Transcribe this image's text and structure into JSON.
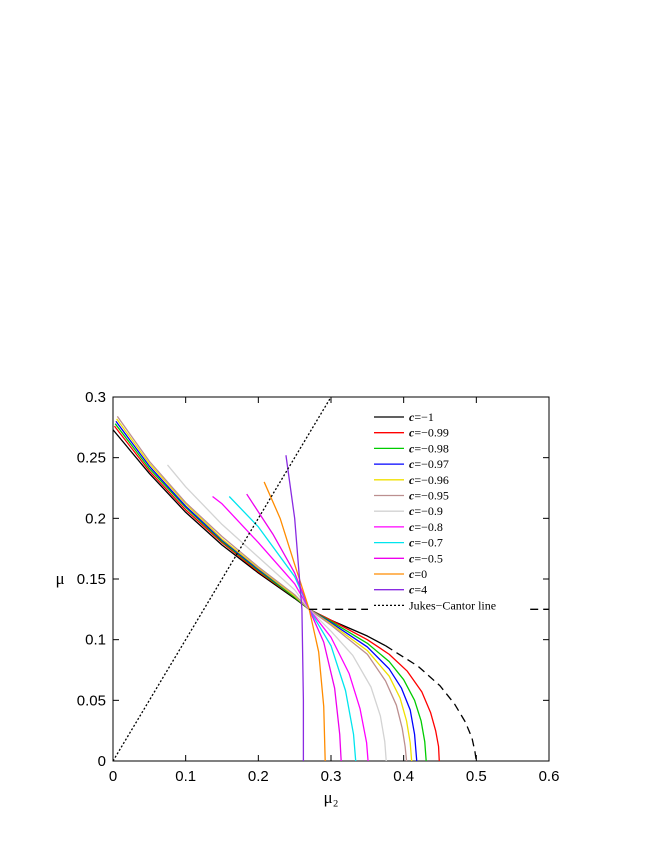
{
  "chart_data": {
    "type": "line",
    "title": "",
    "xlabel": "μ₂",
    "ylabel": "μ",
    "xlim": [
      0,
      0.6
    ],
    "ylim": [
      0,
      0.3
    ],
    "xticks": [
      0,
      0.1,
      0.2,
      0.3,
      0.4,
      0.5,
      0.6
    ],
    "xtick_labels": [
      "0",
      "0.1",
      "0.2",
      "0.3",
      "0.4",
      "0.5",
      "0.6"
    ],
    "yticks": [
      0,
      0.05,
      0.1,
      0.15,
      0.2,
      0.25,
      0.3
    ],
    "ytick_labels": [
      "0",
      "0.05",
      "0.1",
      "0.15",
      "0.2",
      "0.25",
      "0.3"
    ],
    "grid": false,
    "legend_position": "top-right",
    "series": [
      {
        "name": "c=−1",
        "legend_prefix": "c",
        "legend_suffix": "=−1",
        "color": "#000000",
        "dash": "solid",
        "x": [
          0,
          0.05,
          0.1,
          0.15,
          0.2,
          0.25,
          0.27,
          0.3,
          0.35,
          0.375
        ],
        "y": [
          0.273,
          0.237,
          0.205,
          0.178,
          0.155,
          0.134,
          0.125,
          0.116,
          0.103,
          0.095
        ]
      },
      {
        "name": "c=−0.99",
        "legend_prefix": "c",
        "legend_suffix": "=−0.99",
        "color": "#ff0000",
        "dash": "solid",
        "x": [
          0.002,
          0.05,
          0.1,
          0.15,
          0.2,
          0.25,
          0.27,
          0.3,
          0.35,
          0.38,
          0.405,
          0.425,
          0.437,
          0.444,
          0.448,
          0.449
        ],
        "y": [
          0.276,
          0.239,
          0.207,
          0.18,
          0.156,
          0.135,
          0.125,
          0.116,
          0.1,
          0.088,
          0.074,
          0.057,
          0.04,
          0.025,
          0.012,
          0
        ]
      },
      {
        "name": "c=−0.98",
        "legend_prefix": "c",
        "legend_suffix": "=−0.98",
        "color": "#00cc00",
        "dash": "solid",
        "x": [
          0.003,
          0.05,
          0.1,
          0.15,
          0.2,
          0.25,
          0.27,
          0.3,
          0.35,
          0.38,
          0.4,
          0.415,
          0.424,
          0.429,
          0.431
        ],
        "y": [
          0.278,
          0.241,
          0.209,
          0.181,
          0.157,
          0.135,
          0.125,
          0.115,
          0.097,
          0.082,
          0.067,
          0.05,
          0.033,
          0.016,
          0
        ]
      },
      {
        "name": "c=−0.97",
        "legend_prefix": "c",
        "legend_suffix": "=−0.97",
        "color": "#0000ff",
        "dash": "solid",
        "x": [
          0.004,
          0.05,
          0.1,
          0.15,
          0.2,
          0.25,
          0.27,
          0.3,
          0.35,
          0.38,
          0.397,
          0.409,
          0.415,
          0.418
        ],
        "y": [
          0.28,
          0.243,
          0.21,
          0.182,
          0.158,
          0.136,
          0.125,
          0.114,
          0.094,
          0.076,
          0.06,
          0.042,
          0.022,
          0
        ]
      },
      {
        "name": "c=−0.96",
        "legend_prefix": "c",
        "legend_suffix": "=−0.96",
        "color": "#f0e000",
        "dash": "solid",
        "x": [
          0.005,
          0.05,
          0.1,
          0.15,
          0.2,
          0.25,
          0.27,
          0.3,
          0.35,
          0.38,
          0.395,
          0.404,
          0.409,
          0.411
        ],
        "y": [
          0.282,
          0.245,
          0.212,
          0.183,
          0.159,
          0.136,
          0.125,
          0.113,
          0.091,
          0.07,
          0.052,
          0.033,
          0.015,
          0
        ]
      },
      {
        "name": "c=−0.95",
        "legend_prefix": "c",
        "legend_suffix": "=−0.95",
        "color": "#bc8f8f",
        "dash": "solid",
        "x": [
          0.006,
          0.05,
          0.1,
          0.15,
          0.2,
          0.25,
          0.27,
          0.3,
          0.35,
          0.375,
          0.39,
          0.398,
          0.402,
          0.404
        ],
        "y": [
          0.284,
          0.247,
          0.213,
          0.185,
          0.16,
          0.137,
          0.125,
          0.112,
          0.088,
          0.066,
          0.046,
          0.027,
          0.012,
          0
        ]
      },
      {
        "name": "c=−0.9",
        "legend_prefix": "c",
        "legend_suffix": "=−0.9",
        "color": "#d3d3d3",
        "dash": "solid",
        "x": [
          0.075,
          0.1,
          0.15,
          0.2,
          0.25,
          0.27,
          0.3,
          0.33,
          0.355,
          0.368,
          0.374,
          0.376
        ],
        "y": [
          0.244,
          0.226,
          0.195,
          0.168,
          0.141,
          0.125,
          0.107,
          0.087,
          0.061,
          0.037,
          0.016,
          0
        ]
      },
      {
        "name": "c=−0.8",
        "legend_prefix": "c",
        "legend_suffix": "=−0.8",
        "color": "#ff00ff",
        "dash": "solid",
        "x": [
          0.137,
          0.15,
          0.2,
          0.25,
          0.27,
          0.3,
          0.325,
          0.34,
          0.349,
          0.351
        ],
        "y": [
          0.218,
          0.212,
          0.18,
          0.146,
          0.125,
          0.102,
          0.072,
          0.043,
          0.015,
          0
        ]
      },
      {
        "name": "c=−0.7",
        "legend_prefix": "c",
        "legend_suffix": "=−0.7",
        "color": "#00e5ee",
        "dash": "solid",
        "x": [
          0.16,
          0.2,
          0.25,
          0.27,
          0.3,
          0.32,
          0.331,
          0.334
        ],
        "y": [
          0.218,
          0.193,
          0.152,
          0.125,
          0.095,
          0.058,
          0.022,
          0
        ]
      },
      {
        "name": "c=−0.5",
        "legend_prefix": "c",
        "legend_suffix": "=−0.5",
        "color": "#ee00ee",
        "dash": "solid",
        "x": [
          0.184,
          0.22,
          0.25,
          0.27,
          0.29,
          0.305,
          0.312,
          0.314
        ],
        "y": [
          0.22,
          0.187,
          0.155,
          0.125,
          0.098,
          0.06,
          0.022,
          0
        ]
      },
      {
        "name": "c=0",
        "legend_prefix": "c",
        "legend_suffix": "=0",
        "color": "#ff8c00",
        "dash": "solid",
        "x": [
          0.208,
          0.23,
          0.25,
          0.27,
          0.283,
          0.29,
          0.292
        ],
        "y": [
          0.23,
          0.2,
          0.162,
          0.125,
          0.09,
          0.045,
          0
        ]
      },
      {
        "name": "c=4",
        "legend_prefix": "c",
        "legend_suffix": "=4",
        "color": "#8a2be2",
        "dash": "solid",
        "x": [
          0.238,
          0.25,
          0.26,
          0.262,
          0.262
        ],
        "y": [
          0.252,
          0.2,
          0.125,
          0.05,
          0
        ]
      },
      {
        "name": "Jukes−Cantor line",
        "legend_prefix": "",
        "legend_suffix": "Jukes−Cantor line",
        "color": "#000000",
        "dash": "dotted",
        "x": [
          0,
          0.3
        ],
        "y": [
          0,
          0.3
        ]
      },
      {
        "name": "",
        "color": "#000000",
        "dash": "dashed",
        "in_legend": false,
        "x": [
          0.27,
          0.6
        ],
        "y": [
          0.125,
          0.125
        ]
      },
      {
        "name": "",
        "color": "#000000",
        "dash": "dashed",
        "in_legend": false,
        "x": [
          0.375,
          0.42,
          0.45,
          0.47,
          0.485,
          0.494,
          0.498,
          0.5
        ],
        "y": [
          0.095,
          0.078,
          0.062,
          0.047,
          0.032,
          0.019,
          0.008,
          0
        ]
      }
    ]
  }
}
